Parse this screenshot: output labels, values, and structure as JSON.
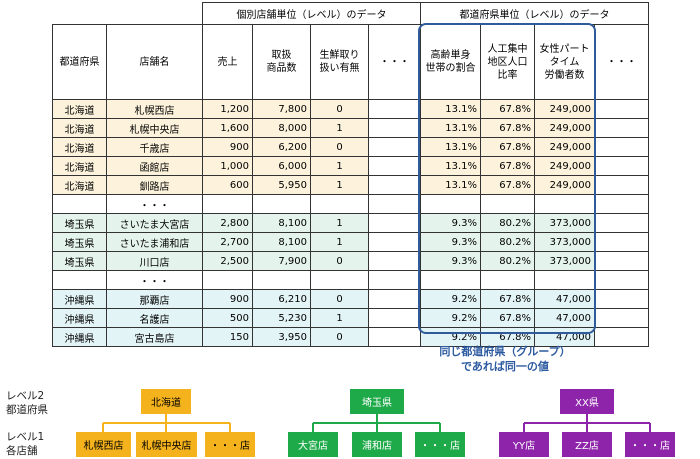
{
  "table": {
    "group_headers": {
      "store_level": "個別店舗単位（レベル）のデータ",
      "pref_level": "都道府県単位（レベル）のデータ"
    },
    "columns": [
      "都道府県",
      "店舗名",
      "売上",
      "取扱\n商品数",
      "生鮮取り\n扱い有無",
      "・・・",
      "高齢単身\n世帯の割合",
      "人工集中\n地区人口\n比率",
      "女性パート\nタイム\n労働者数",
      "・・・"
    ],
    "gap_mark": "・・・",
    "rows": [
      [
        "北海道",
        "札幌西店",
        "1,200",
        "7,800",
        "0",
        "",
        "13.1%",
        "67.8%",
        "249,000",
        ""
      ],
      [
        "北海道",
        "札幌中央店",
        "1,600",
        "8,000",
        "1",
        "",
        "13.1%",
        "67.8%",
        "249,000",
        ""
      ],
      [
        "北海道",
        "千歳店",
        "900",
        "6,200",
        "0",
        "",
        "13.1%",
        "67.8%",
        "249,000",
        ""
      ],
      [
        "北海道",
        "函館店",
        "1,000",
        "6,000",
        "1",
        "",
        "13.1%",
        "67.8%",
        "249,000",
        ""
      ],
      [
        "北海道",
        "釧路店",
        "600",
        "5,950",
        "1",
        "",
        "13.1%",
        "67.8%",
        "249,000",
        ""
      ],
      [
        "埼玉県",
        "さいたま大宮店",
        "2,800",
        "8,100",
        "1",
        "",
        "9.3%",
        "80.2%",
        "373,000",
        ""
      ],
      [
        "埼玉県",
        "さいたま浦和店",
        "2,700",
        "8,100",
        "1",
        "",
        "9.3%",
        "80.2%",
        "373,000",
        ""
      ],
      [
        "埼玉県",
        "川口店",
        "2,500",
        "7,900",
        "0",
        "",
        "9.3%",
        "80.2%",
        "373,000",
        ""
      ],
      [
        "沖縄県",
        "那覇店",
        "900",
        "6,210",
        "0",
        "",
        "9.2%",
        "67.8%",
        "47,000",
        ""
      ],
      [
        "沖縄県",
        "名護店",
        "500",
        "5,230",
        "1",
        "",
        "9.2%",
        "67.8%",
        "47,000",
        ""
      ],
      [
        "沖縄県",
        "宮古島店",
        "150",
        "3,950",
        "0",
        "",
        "9.2%",
        "67.8%",
        "47,000",
        ""
      ]
    ]
  },
  "note": {
    "line1": "同じ都道府県（グループ）",
    "line2": "であれば同一の値"
  },
  "levels": {
    "level2": {
      "line1": "レベル2",
      "line2": "都道府県"
    },
    "level1": {
      "line1": "レベル1",
      "line2": "各店舗"
    }
  },
  "hierarchy": {
    "hokkaido": {
      "parent": "北海道",
      "children": [
        "札幌西店",
        "札幌中央店",
        "・・・店"
      ],
      "color": "#f4b31c"
    },
    "saitama": {
      "parent": "埼玉県",
      "children": [
        "大宮店",
        "浦和店",
        "・・・店"
      ],
      "color": "#1faa4a"
    },
    "xx": {
      "parent": "XX県",
      "children": [
        "YY店",
        "ZZ店",
        "・・・店"
      ],
      "color": "#8e24aa"
    }
  }
}
